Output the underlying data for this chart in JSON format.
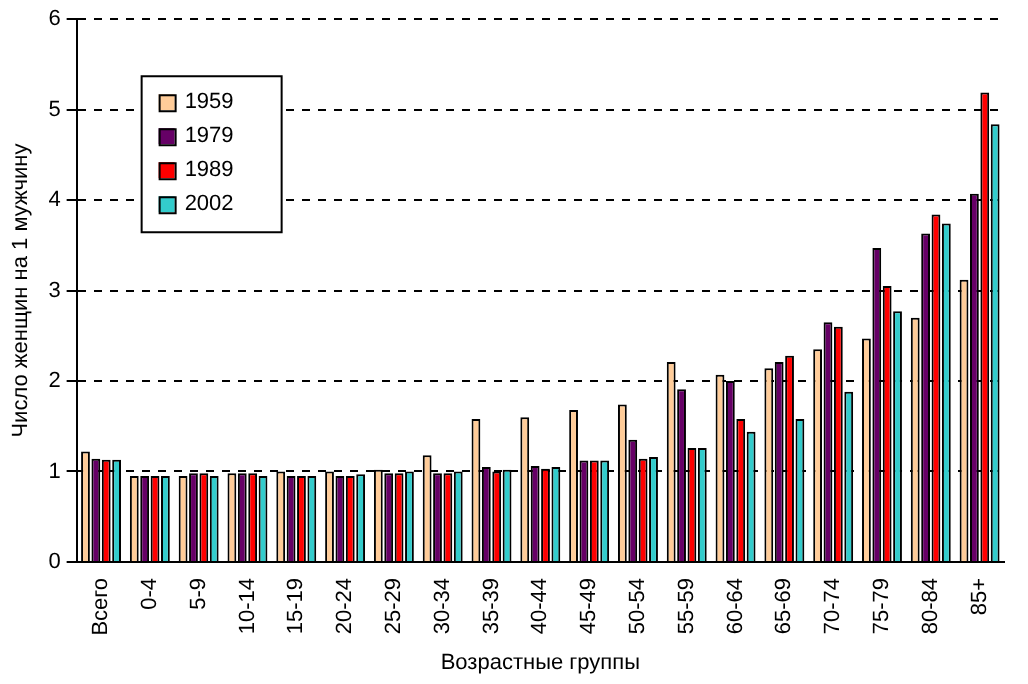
{
  "chart_data": {
    "type": "bar",
    "xlabel": "Возрастные группы",
    "ylabel": "Число женщин на 1 мужчину",
    "categories": [
      "Всего",
      "0-4",
      "5-9",
      "10-14",
      "15-19",
      "20-24",
      "25-29",
      "30-34",
      "35-39",
      "40-44",
      "45-49",
      "50-54",
      "55-59",
      "60-64",
      "65-69",
      "70-74",
      "75-79",
      "80-84",
      "85+"
    ],
    "series": [
      {
        "name": "1959",
        "color": "#ffcc99",
        "values": [
          1.22,
          0.95,
          0.95,
          0.98,
          1.0,
          1.0,
          1.02,
          1.18,
          1.58,
          1.6,
          1.68,
          1.74,
          2.21,
          2.07,
          2.14,
          2.35,
          2.47,
          2.7,
          3.12
        ]
      },
      {
        "name": "1979",
        "color": "#660066",
        "values": [
          1.14,
          0.95,
          0.98,
          0.98,
          0.95,
          0.95,
          0.98,
          0.98,
          1.05,
          1.06,
          1.12,
          1.35,
          1.91,
          2.0,
          2.21,
          2.65,
          3.47,
          3.63,
          4.07
        ]
      },
      {
        "name": "1989",
        "color": "#ff0000",
        "values": [
          1.13,
          0.95,
          0.98,
          0.98,
          0.95,
          0.95,
          0.98,
          0.98,
          1.0,
          1.03,
          1.12,
          1.14,
          1.26,
          1.58,
          2.28,
          2.6,
          3.05,
          3.84,
          5.19
        ]
      },
      {
        "name": "2002",
        "color": "#33cccc",
        "values": [
          1.13,
          0.95,
          0.95,
          0.95,
          0.95,
          0.97,
          1.0,
          1.0,
          1.02,
          1.05,
          1.12,
          1.16,
          1.26,
          1.44,
          1.58,
          1.88,
          2.77,
          3.74,
          4.84
        ]
      }
    ],
    "ylim": [
      0,
      6
    ],
    "yticks": [
      0,
      1,
      2,
      3,
      4,
      5,
      6
    ],
    "grid": "y",
    "legend": "top left"
  }
}
